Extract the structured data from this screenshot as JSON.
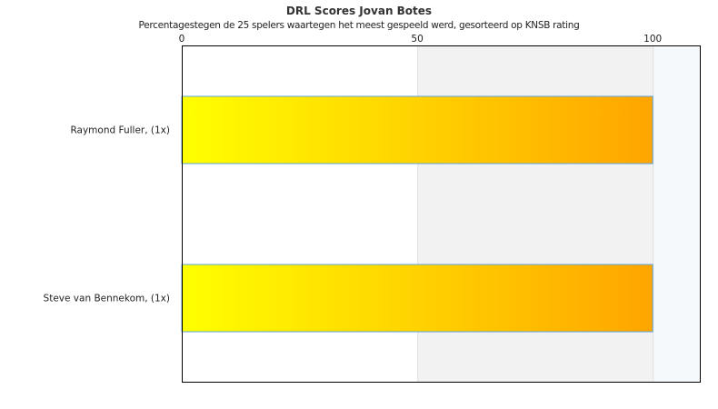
{
  "chart_data": {
    "type": "bar",
    "orientation": "horizontal",
    "title": "DRL Scores Jovan Botes",
    "subtitle": "Percentagestegen de 25 spelers waartegen het meest gespeeld werd, gesorteerd op KNSB rating",
    "categories": [
      "Raymond Fuller,  (1x)",
      "Steve van Bennekom,  (1x)"
    ],
    "values": [
      100,
      100
    ],
    "xlim": [
      0,
      110
    ],
    "xticks": [
      0,
      50,
      100
    ],
    "x_axis_position": "top",
    "bands": [
      {
        "from": 0,
        "to": 50,
        "color": "#ffffff"
      },
      {
        "from": 50,
        "to": 100,
        "color": "#f2f2f2"
      },
      {
        "from": 100,
        "to": 110,
        "color": "#f5f9fc"
      }
    ],
    "bar_gradient": [
      "#ffff00",
      "#ffa500"
    ],
    "bar_border": "#5ba3e0",
    "grid": true,
    "legend": "none"
  }
}
